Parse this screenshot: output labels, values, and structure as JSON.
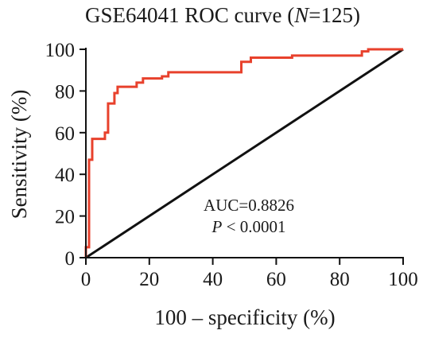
{
  "chart_data": {
    "type": "line",
    "title_prefix": "GSE64041 ROC curve (",
    "title_n": "N",
    "title_suffix": "=125)",
    "xlabel": "100 – specificity (%)",
    "ylabel": "Sensitivity (%)",
    "xlim": [
      0,
      100
    ],
    "ylim": [
      0,
      100
    ],
    "xticks": [
      0,
      20,
      40,
      60,
      80,
      100
    ],
    "yticks": [
      0,
      20,
      40,
      60,
      80,
      100
    ],
    "grid": false,
    "legend": "none",
    "annotation": {
      "auc": "AUC=0.8826",
      "p_symbol": "P",
      "p_rest": " < 0.0001"
    },
    "colors": {
      "roc": "#e8412c",
      "reference": "#111111",
      "axis": "#111111"
    },
    "series": [
      {
        "values_x": [
          0,
          0,
          0,
          1,
          1,
          1,
          2,
          2,
          4,
          4,
          6,
          6,
          7,
          7,
          9,
          9,
          10,
          10,
          16,
          16,
          18,
          18,
          24,
          24,
          26,
          26,
          49,
          49,
          52,
          52,
          65,
          65,
          87,
          87,
          89,
          89,
          100
        ],
        "values_y": [
          0,
          5,
          5,
          5,
          5,
          47,
          47,
          57,
          57,
          57,
          57,
          60,
          60,
          74,
          74,
          79,
          79,
          82,
          82,
          84,
          84,
          86,
          86,
          87,
          87,
          89,
          89,
          94,
          94,
          96,
          96,
          97,
          97,
          99,
          99,
          100,
          100
        ]
      },
      {
        "values_x": [
          0,
          100
        ],
        "values_y": [
          0,
          100
        ]
      }
    ]
  }
}
